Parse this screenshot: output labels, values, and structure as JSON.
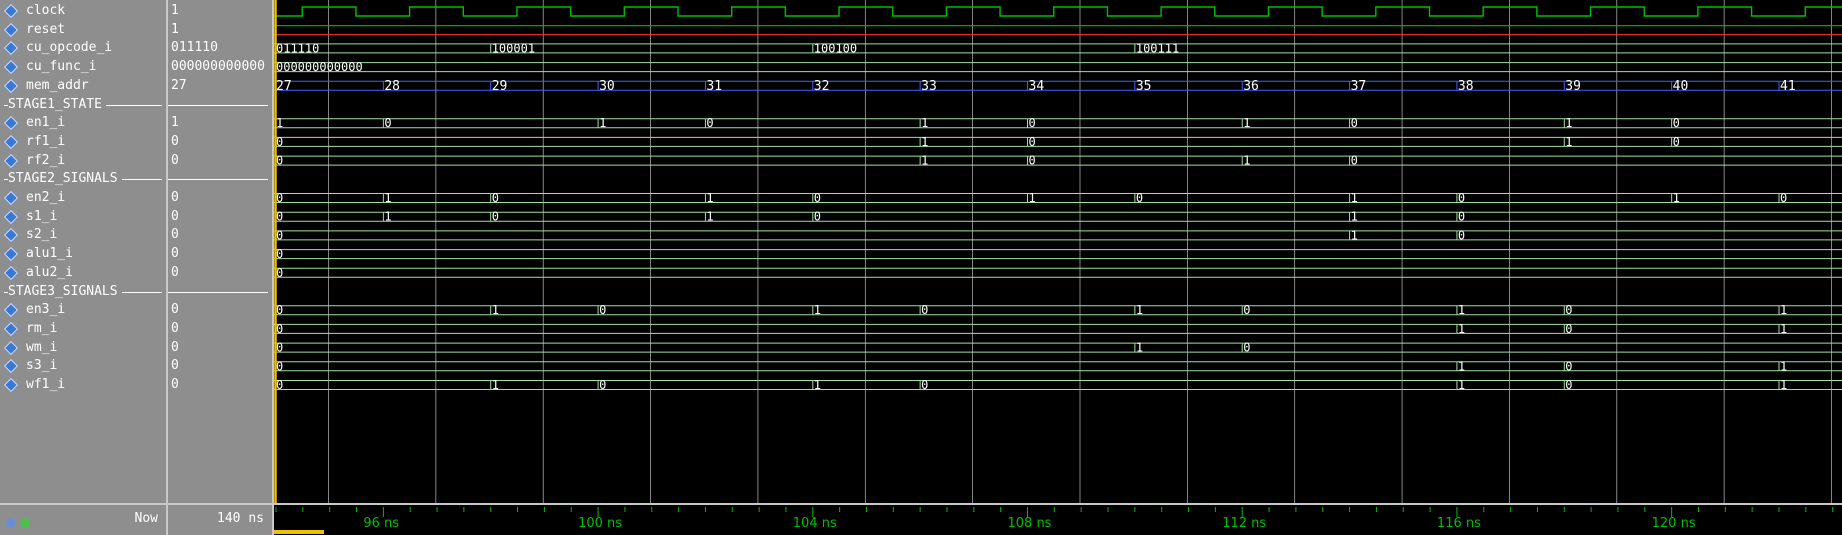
{
  "colors": {
    "clock": "#00c000",
    "reset": "#ff3030",
    "bus": "#a0e0a0",
    "addr": "#4060ff",
    "grid": "#bdbdbd",
    "cursor": "#f0c000",
    "timeline": "#00c000"
  },
  "signals": [
    {
      "name": "clock",
      "value": "1",
      "kind": "clock"
    },
    {
      "name": "reset",
      "value": "1",
      "kind": "reset"
    },
    {
      "name": "cu_opcode_i",
      "value": "011110",
      "kind": "bus",
      "changes": [
        [
          94,
          "011110"
        ],
        [
          98,
          "100001"
        ],
        [
          104,
          "100100"
        ],
        [
          110,
          "100111"
        ]
      ]
    },
    {
      "name": "cu_func_i",
      "value": "000000000000",
      "kind": "bus",
      "changes": [
        [
          94,
          "000000000000"
        ]
      ]
    },
    {
      "name": "mem_addr",
      "value": "27",
      "kind": "addr",
      "changes": [
        [
          94,
          "27"
        ],
        [
          96,
          "28"
        ],
        [
          98,
          "29"
        ],
        [
          100,
          "30"
        ],
        [
          102,
          "31"
        ],
        [
          104,
          "32"
        ],
        [
          106,
          "33"
        ],
        [
          108,
          "34"
        ],
        [
          110,
          "35"
        ],
        [
          112,
          "36"
        ],
        [
          114,
          "37"
        ],
        [
          116,
          "38"
        ],
        [
          118,
          "39"
        ],
        [
          120,
          "40"
        ],
        [
          122,
          "41"
        ]
      ]
    },
    {
      "divider": "STAGE1_STATE"
    },
    {
      "name": "en1_i",
      "value": "1",
      "kind": "bus",
      "changes": [
        [
          94,
          "1"
        ],
        [
          96,
          "0"
        ],
        [
          100,
          "1"
        ],
        [
          102,
          "0"
        ],
        [
          106,
          "1"
        ],
        [
          108,
          "0"
        ],
        [
          112,
          "1"
        ],
        [
          114,
          "0"
        ],
        [
          118,
          "1"
        ],
        [
          120,
          "0"
        ]
      ]
    },
    {
      "name": "rf1_i",
      "value": "0",
      "kind": "bus",
      "changes": [
        [
          94,
          "0"
        ],
        [
          106,
          "1"
        ],
        [
          108,
          "0"
        ],
        [
          118,
          "1"
        ],
        [
          120,
          "0"
        ]
      ]
    },
    {
      "name": "rf2_i",
      "value": "0",
      "kind": "bus",
      "changes": [
        [
          94,
          "0"
        ],
        [
          106,
          "1"
        ],
        [
          108,
          "0"
        ],
        [
          112,
          "1"
        ],
        [
          114,
          "0"
        ]
      ]
    },
    {
      "divider": "STAGE2_SIGNALS"
    },
    {
      "name": "en2_i",
      "value": "0",
      "kind": "bus",
      "changes": [
        [
          94,
          "0"
        ],
        [
          96,
          "1"
        ],
        [
          98,
          "0"
        ],
        [
          102,
          "1"
        ],
        [
          104,
          "0"
        ],
        [
          108,
          "1"
        ],
        [
          110,
          "0"
        ],
        [
          114,
          "1"
        ],
        [
          116,
          "0"
        ],
        [
          120,
          "1"
        ],
        [
          122,
          "0"
        ]
      ]
    },
    {
      "name": "s1_i",
      "value": "0",
      "kind": "bus",
      "changes": [
        [
          94,
          "0"
        ],
        [
          96,
          "1"
        ],
        [
          98,
          "0"
        ],
        [
          102,
          "1"
        ],
        [
          104,
          "0"
        ],
        [
          114,
          "1"
        ],
        [
          116,
          "0"
        ]
      ]
    },
    {
      "name": "s2_i",
      "value": "0",
      "kind": "bus",
      "changes": [
        [
          94,
          "0"
        ],
        [
          114,
          "1"
        ],
        [
          116,
          "0"
        ]
      ]
    },
    {
      "name": "alu1_i",
      "value": "0",
      "kind": "bus",
      "changes": [
        [
          94,
          "0"
        ]
      ]
    },
    {
      "name": "alu2_i",
      "value": "0",
      "kind": "bus",
      "changes": [
        [
          94,
          "0"
        ]
      ]
    },
    {
      "divider": "STAGE3_SIGNALS"
    },
    {
      "name": "en3_i",
      "value": "0",
      "kind": "bus",
      "changes": [
        [
          94,
          "0"
        ],
        [
          98,
          "1"
        ],
        [
          100,
          "0"
        ],
        [
          104,
          "1"
        ],
        [
          106,
          "0"
        ],
        [
          110,
          "1"
        ],
        [
          112,
          "0"
        ],
        [
          116,
          "1"
        ],
        [
          118,
          "0"
        ],
        [
          122,
          "1"
        ]
      ]
    },
    {
      "name": "rm_i",
      "value": "0",
      "kind": "bus",
      "changes": [
        [
          94,
          "0"
        ],
        [
          116,
          "1"
        ],
        [
          118,
          "0"
        ],
        [
          122,
          "1"
        ]
      ]
    },
    {
      "name": "wm_i",
      "value": "0",
      "kind": "bus",
      "changes": [
        [
          94,
          "0"
        ],
        [
          110,
          "1"
        ],
        [
          112,
          "0"
        ]
      ]
    },
    {
      "name": "s3_i",
      "value": "0",
      "kind": "bus",
      "changes": [
        [
          94,
          "0"
        ],
        [
          116,
          "1"
        ],
        [
          118,
          "0"
        ],
        [
          122,
          "1"
        ]
      ]
    },
    {
      "name": "wf1_i",
      "value": "0",
      "kind": "bus",
      "changes": [
        [
          94,
          "0"
        ],
        [
          98,
          "1"
        ],
        [
          100,
          "0"
        ],
        [
          104,
          "1"
        ],
        [
          106,
          "0"
        ],
        [
          116,
          "1"
        ],
        [
          118,
          "0"
        ],
        [
          122,
          "1"
        ]
      ]
    }
  ],
  "timeline": {
    "start_ns": 94,
    "end_ns": 123.3,
    "major_labels": [
      "96 ns",
      "100 ns",
      "104 ns",
      "108 ns",
      "112 ns",
      "116 ns",
      "120 ns"
    ],
    "major_ns": [
      96,
      100,
      104,
      108,
      112,
      116,
      120
    ]
  },
  "status": {
    "now_label": "Now",
    "now_time": "140 ns"
  }
}
